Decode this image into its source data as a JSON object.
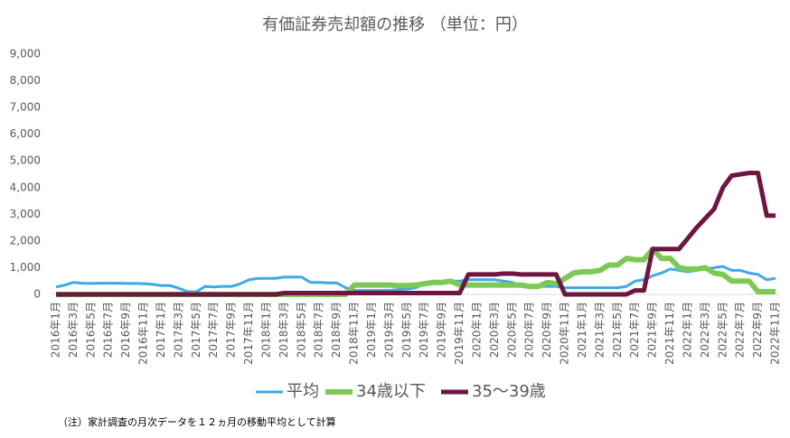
{
  "chart_data": {
    "type": "line",
    "title": "有価証券売却額の推移 （単位：円）",
    "note": "（注）家計調査の月次データを１２ヵ月の移動平均として計算",
    "categories": [
      "2016年1月",
      null,
      "2016年3月",
      null,
      "2016年5月",
      null,
      "2016年7月",
      null,
      "2016年9月",
      null,
      "2016年11月",
      null,
      "2017年1月",
      null,
      "2017年3月",
      null,
      "2017年5月",
      null,
      "2017年7月",
      null,
      "2017年9月",
      null,
      "2017年11月",
      null,
      "2018年1月",
      null,
      "2018年3月",
      null,
      "2018年5月",
      null,
      "2018年7月",
      null,
      "2018年9月",
      null,
      "2018年11月",
      null,
      "2019年1月",
      null,
      "2019年3月",
      null,
      "2019年5月",
      null,
      "2019年7月",
      null,
      "2019年9月",
      null,
      "2019年11月",
      null,
      "2020年1月",
      null,
      "2020年3月",
      null,
      "2020年5月",
      null,
      "2020年7月",
      null,
      "2020年9月",
      null,
      "2020年11月",
      null,
      "2021年1月",
      null,
      "2021年3月",
      null,
      "2021年5月",
      null,
      "2021年7月",
      null,
      "2021年9月",
      null,
      "2021年11月",
      null,
      "2022年1月",
      null,
      "2022年3月",
      null,
      "2022年5月",
      null,
      "2022年7月",
      null,
      "2022年9月",
      null,
      "2022年11月"
    ],
    "series": [
      {
        "name": "平均",
        "color": "#3fa9e8",
        "width": 3,
        "values": [
          280,
          350,
          450,
          420,
          410,
          420,
          420,
          420,
          410,
          410,
          400,
          380,
          330,
          330,
          230,
          100,
          100,
          300,
          280,
          300,
          300,
          400,
          550,
          600,
          600,
          600,
          650,
          650,
          650,
          450,
          450,
          430,
          430,
          250,
          150,
          150,
          150,
          150,
          150,
          180,
          200,
          250,
          400,
          450,
          450,
          500,
          500,
          550,
          550,
          550,
          550,
          500,
          450,
          300,
          300,
          300,
          300,
          300,
          250,
          250,
          250,
          250,
          250,
          250,
          250,
          300,
          500,
          550,
          700,
          800,
          950,
          900,
          850,
          900,
          950,
          1000,
          1050,
          900,
          900,
          800,
          750,
          550,
          600
        ]
      },
      {
        "name": "34歳以下",
        "color": "#7dc955",
        "width": 6,
        "values": [
          0,
          0,
          0,
          0,
          0,
          0,
          0,
          0,
          0,
          0,
          0,
          0,
          0,
          0,
          0,
          0,
          0,
          0,
          0,
          0,
          0,
          0,
          0,
          0,
          0,
          0,
          0,
          0,
          0,
          0,
          0,
          0,
          0,
          0,
          350,
          350,
          350,
          350,
          350,
          330,
          330,
          350,
          400,
          450,
          450,
          500,
          350,
          350,
          350,
          350,
          350,
          350,
          350,
          350,
          300,
          300,
          450,
          400,
          600,
          800,
          850,
          850,
          900,
          1100,
          1100,
          1350,
          1300,
          1300,
          1700,
          1350,
          1350,
          1000,
          950,
          950,
          1000,
          800,
          750,
          500,
          500,
          500,
          100,
          100,
          100
        ]
      },
      {
        "name": "35～39歳",
        "color": "#6e1640",
        "width": 5,
        "values": [
          0,
          0,
          0,
          0,
          0,
          0,
          0,
          0,
          0,
          0,
          0,
          0,
          0,
          0,
          0,
          0,
          0,
          0,
          0,
          0,
          0,
          0,
          0,
          0,
          0,
          0,
          50,
          50,
          50,
          50,
          50,
          50,
          50,
          50,
          50,
          50,
          50,
          50,
          50,
          50,
          50,
          50,
          50,
          50,
          50,
          50,
          50,
          750,
          750,
          750,
          750,
          780,
          780,
          750,
          750,
          750,
          750,
          750,
          0,
          0,
          0,
          0,
          0,
          0,
          0,
          0,
          150,
          150,
          1700,
          1700,
          1700,
          1700,
          2100,
          2500,
          2850,
          3200,
          4000,
          4450,
          4500,
          4550,
          4550,
          2950,
          2950
        ]
      }
    ],
    "ylim": [
      0,
      9000
    ],
    "yticks": [
      0,
      {
        "value": 1000,
        "label": "1,000"
      },
      {
        "value": 2000,
        "label": "2,000"
      },
      {
        "value": 3000,
        "label": "3,000"
      },
      {
        "value": 4000,
        "label": "4,000"
      },
      {
        "value": 5000,
        "label": "5,000"
      },
      {
        "value": 6000,
        "label": "6,000"
      },
      {
        "value": 7000,
        "label": "7,000"
      },
      {
        "value": 8000,
        "label": "8,000"
      },
      {
        "value": 9000,
        "label": "9,000"
      }
    ],
    "grid": false,
    "legend": "bottom"
  }
}
